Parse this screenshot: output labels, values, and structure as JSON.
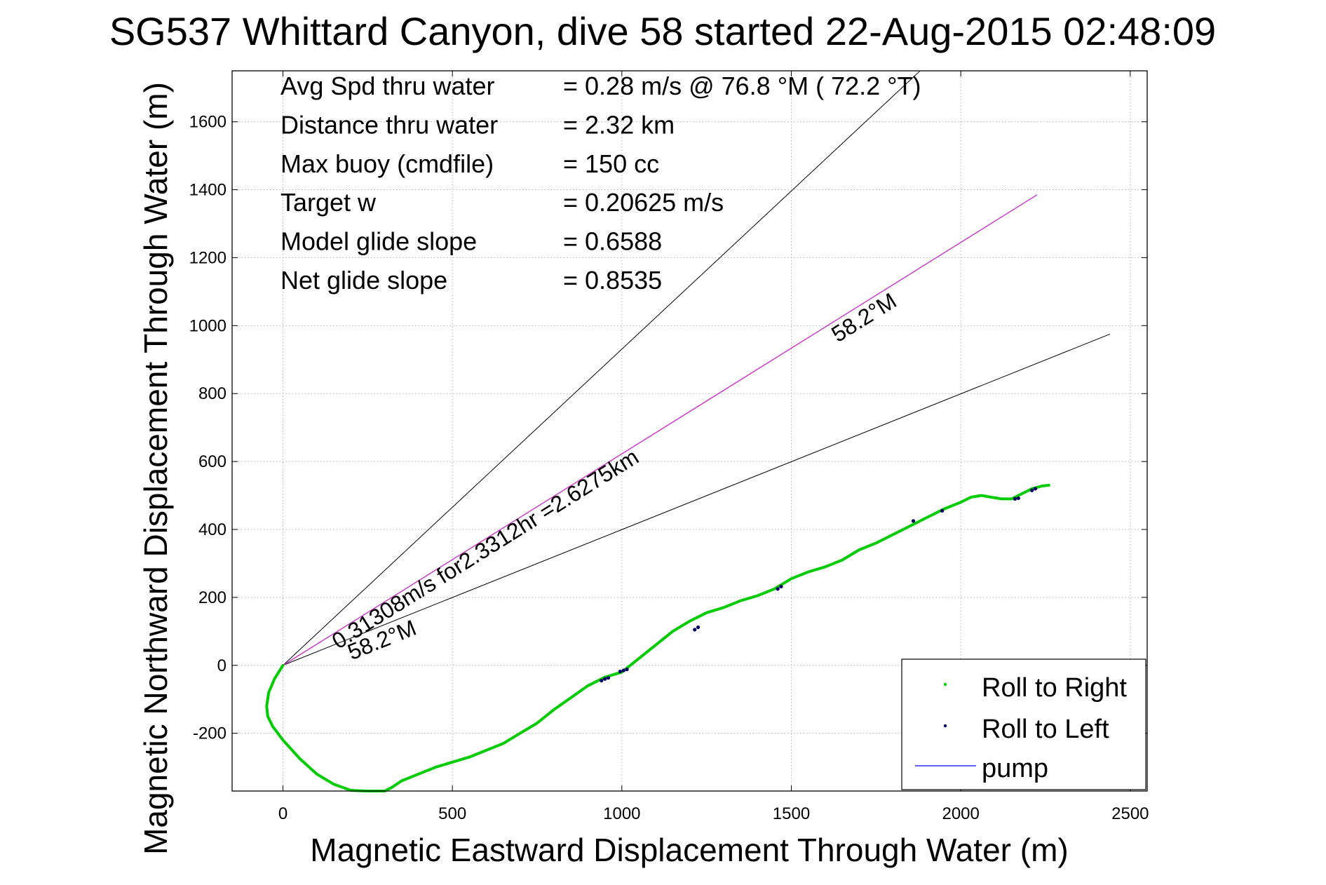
{
  "chart_data": {
    "type": "line",
    "title": "SG537 Whittard Canyon, dive 58 started 22-Aug-2015 02:48:09",
    "xlabel": "Magnetic Eastward Displacement Through Water (m)",
    "ylabel": "Magnetic Northward Displacement Through Water (m)",
    "xlim": [
      -150,
      2550
    ],
    "ylim": [
      -370,
      1750
    ],
    "xticks": [
      0,
      500,
      1000,
      1500,
      2000,
      2500
    ],
    "yticks": [
      -200,
      0,
      200,
      400,
      600,
      800,
      1000,
      1200,
      1400,
      1600
    ],
    "xtick_labels": [
      "0",
      "500",
      "1000",
      "1500",
      "2000",
      "2500"
    ],
    "ytick_labels": [
      "-200",
      "0",
      "200",
      "400",
      "600",
      "800",
      "1000",
      "1200",
      "1400",
      "1600"
    ],
    "grid": true,
    "legend_position": "bottom-right",
    "colors": {
      "roll_right": "#00cc00",
      "roll_left": "#000066",
      "pump": "#0000ff",
      "target": "#cc33cc",
      "bounds": "#000000"
    },
    "stats": [
      {
        "label": "Avg Spd thru water",
        "value": "=  0.28 m/s @  76.8 °M ( 72.2 °T)"
      },
      {
        "label": "Distance thru water",
        "value": "=  2.32 km"
      },
      {
        "label": "Max buoy (cmdfile)",
        "value": "= 150 cc"
      },
      {
        "label": "Target w",
        "value": "= 0.20625 m/s"
      },
      {
        "label": "Model glide slope",
        "value": "= 0.6588"
      },
      {
        "label": "Net glide slope",
        "value": "= 0.8535"
      }
    ],
    "annotations": {
      "target_label": "0.31308m/s for2.3312hr =2.6275km",
      "angle_label_upper": "58.2°M",
      "angle_label_lower": "58.2°M"
    },
    "lines": {
      "target": {
        "x": [
          0,
          2225
        ],
        "y": [
          0,
          1385
        ]
      },
      "upper_bound": {
        "x": [
          0,
          1880
        ],
        "y": [
          0,
          1750
        ]
      },
      "lower_bound": {
        "x": [
          0,
          2440
        ],
        "y": [
          0,
          975
        ]
      }
    },
    "series": [
      {
        "name": "Roll to Right",
        "x": [
          0,
          -25,
          -42,
          -48,
          -45,
          -30,
          0,
          50,
          100,
          150,
          200,
          250,
          300,
          320,
          350,
          400,
          450,
          500,
          550,
          600,
          650,
          700,
          750,
          800,
          850,
          900,
          950,
          1000,
          1050,
          1100,
          1150,
          1200,
          1250,
          1300,
          1350,
          1400,
          1450,
          1500,
          1550,
          1600,
          1650,
          1700,
          1750,
          1800,
          1850,
          1900,
          1950,
          2000,
          2030,
          2060,
          2090,
          2120,
          2150,
          2180,
          2210,
          2240,
          2260
        ],
        "y": [
          0,
          -40,
          -80,
          -120,
          -150,
          -180,
          -220,
          -275,
          -320,
          -350,
          -368,
          -370,
          -370,
          -360,
          -340,
          -320,
          -300,
          -285,
          -270,
          -250,
          -230,
          -200,
          -170,
          -130,
          -95,
          -60,
          -35,
          -20,
          20,
          60,
          100,
          130,
          155,
          170,
          190,
          205,
          225,
          255,
          275,
          290,
          310,
          340,
          360,
          385,
          410,
          435,
          460,
          480,
          495,
          500,
          495,
          490,
          490,
          505,
          520,
          528,
          530
        ]
      },
      {
        "name": "Roll to Left",
        "x": [
          940,
          950,
          960,
          995,
          1005,
          1015,
          1215,
          1225,
          1460,
          1470,
          1860,
          1945,
          2160,
          2170,
          2210,
          2220
        ],
        "y": [
          -45,
          -40,
          -37,
          -18,
          -15,
          -12,
          105,
          112,
          225,
          232,
          425,
          455,
          490,
          492,
          515,
          520
        ]
      },
      {
        "name": "pump",
        "x": [],
        "y": []
      }
    ]
  }
}
